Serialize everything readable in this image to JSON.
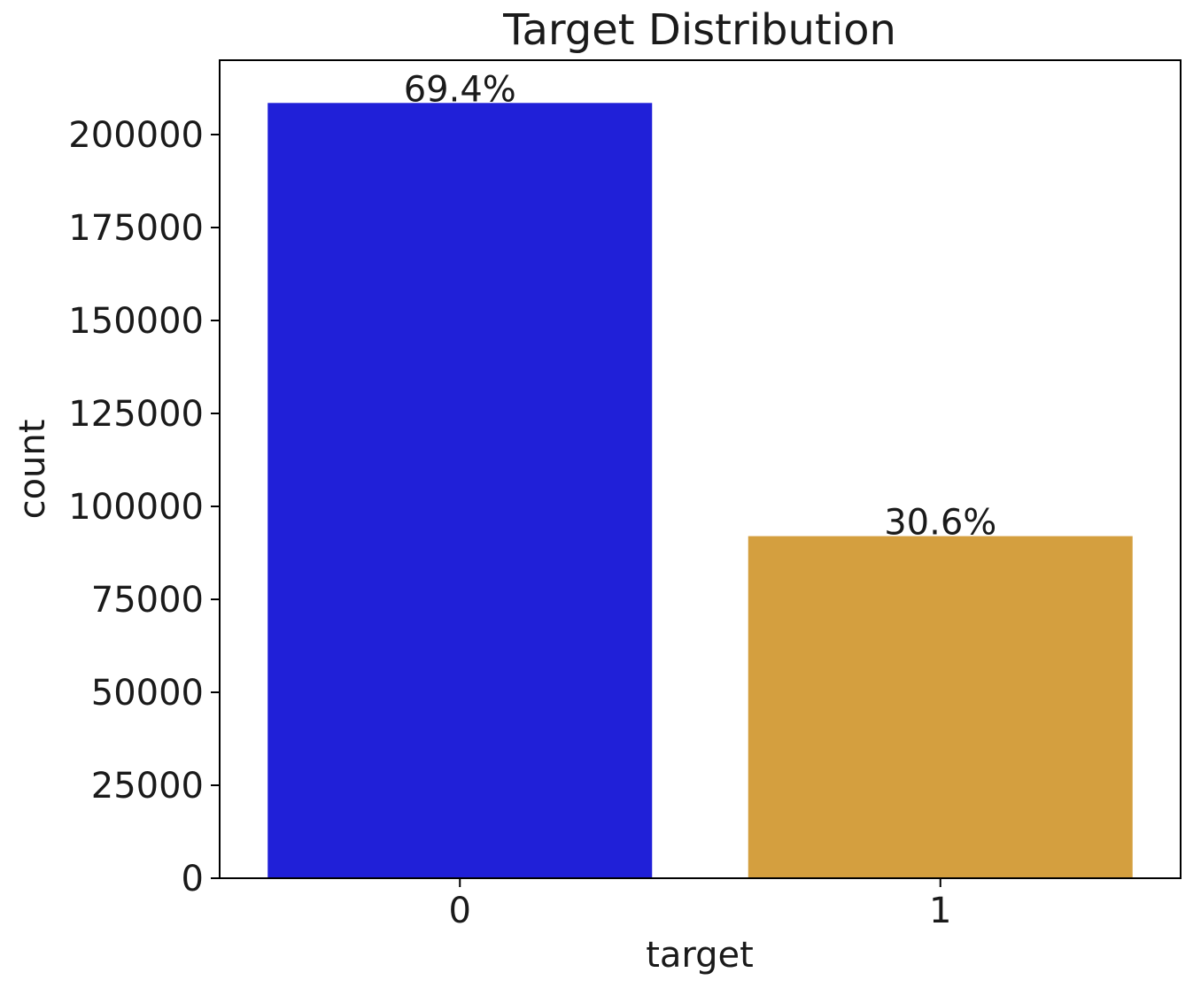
{
  "chart_data": {
    "type": "bar",
    "title": "Target Distribution",
    "xlabel": "target",
    "ylabel": "count",
    "categories": [
      "0",
      "1"
    ],
    "values": [
      208500,
      92000
    ],
    "data_labels": [
      "69.4%",
      "30.6%"
    ],
    "colors": [
      "#2020d8",
      "#d49f3f"
    ],
    "ylim": [
      0,
      220000
    ],
    "yticks": [
      0,
      25000,
      50000,
      75000,
      100000,
      125000,
      150000,
      175000,
      200000
    ],
    "grid": false,
    "legend": "none"
  }
}
